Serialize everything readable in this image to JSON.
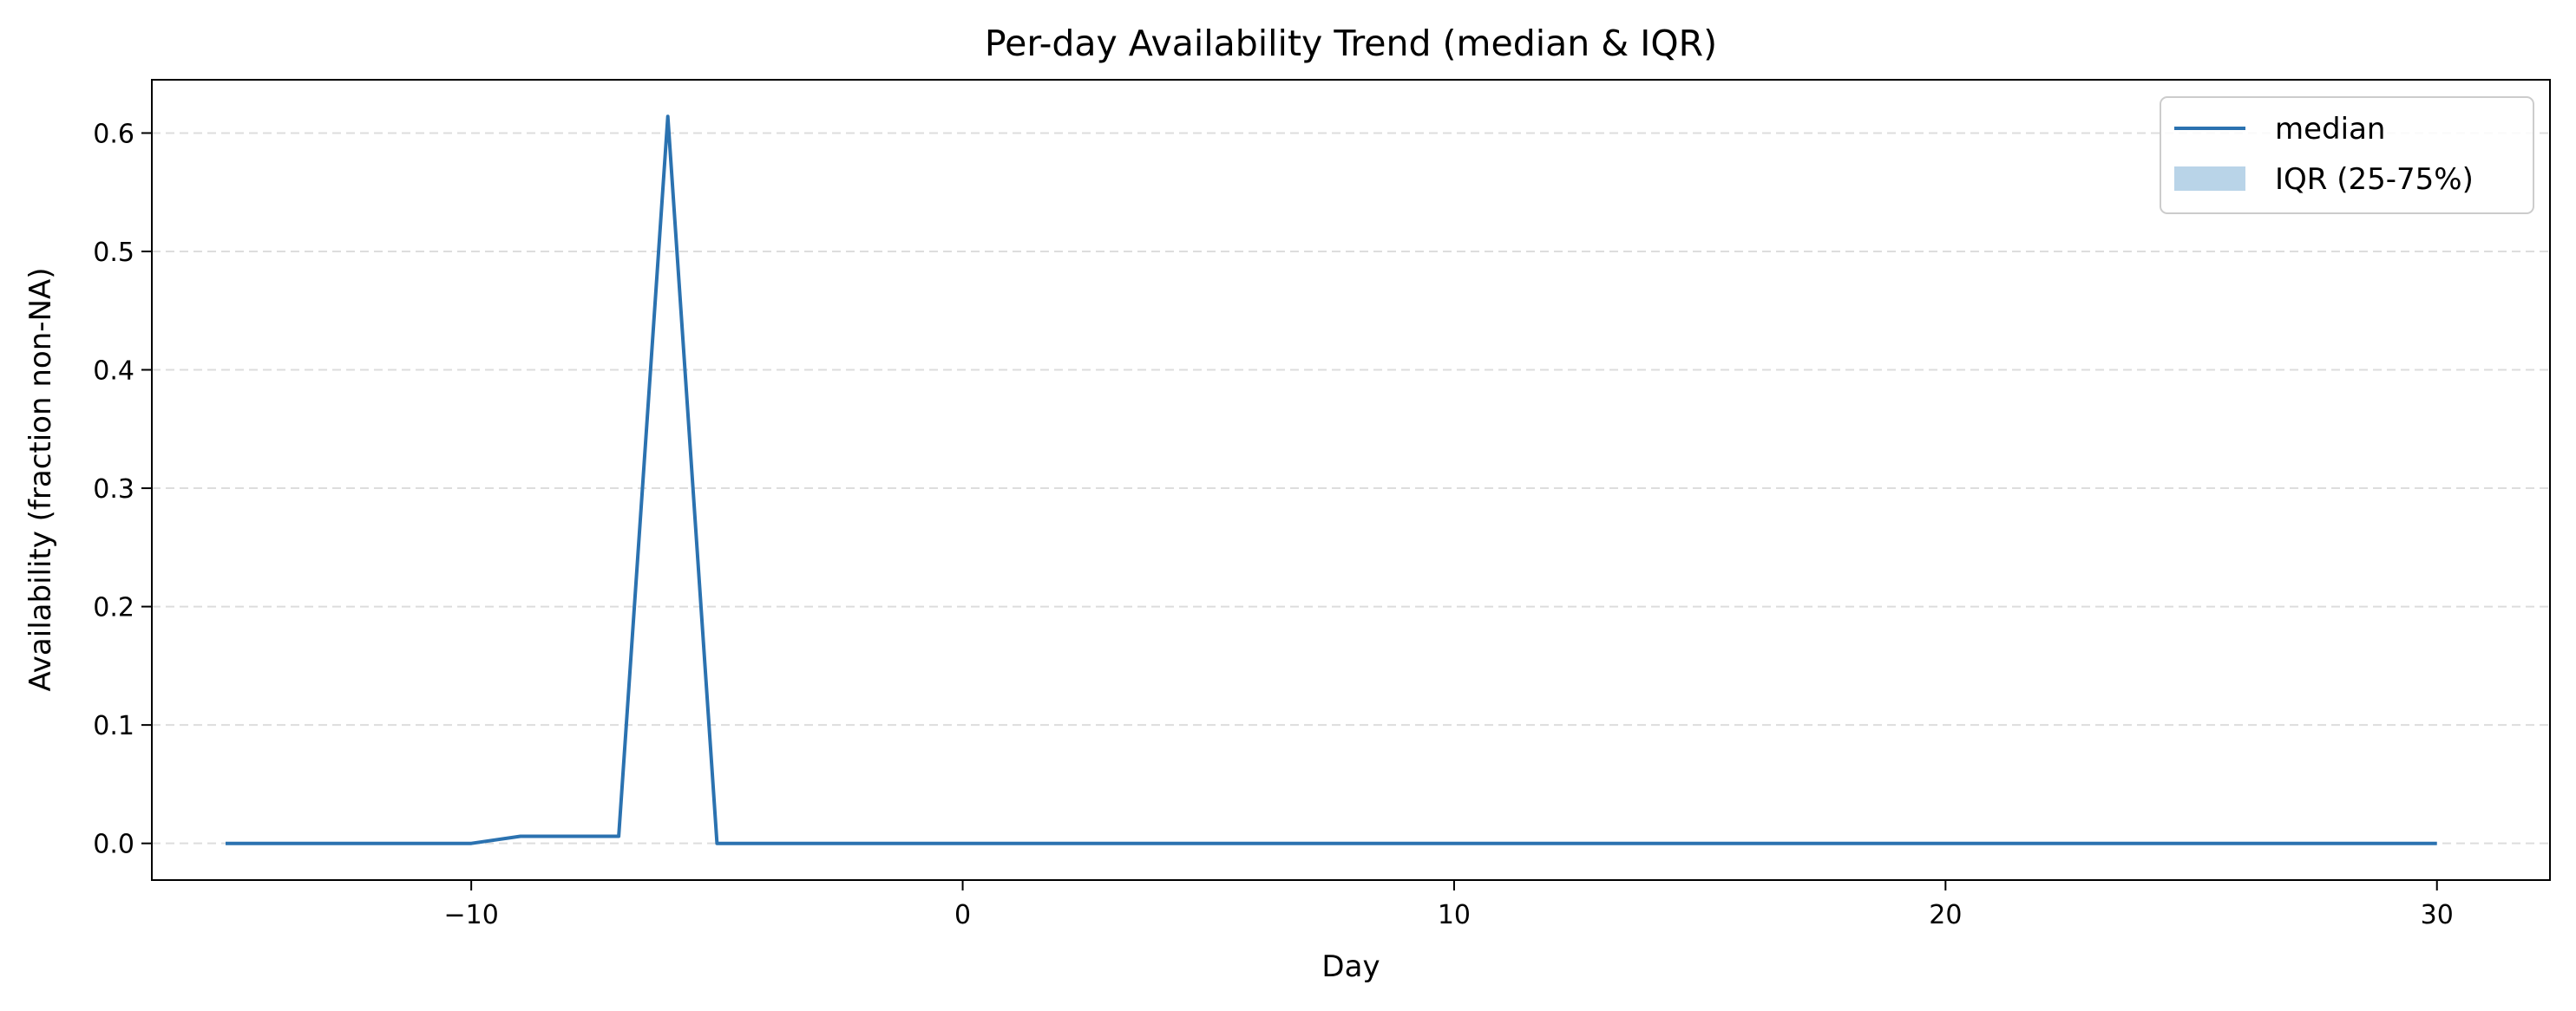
{
  "chart_data": {
    "type": "line",
    "title": "Per-day Availability Trend (median & IQR)",
    "xlabel": "Day",
    "ylabel": "Availability (fraction non-NA)",
    "xlim": [
      -16.5,
      32.3
    ],
    "ylim": [
      -0.031,
      0.645
    ],
    "xticks": [
      -10,
      0,
      10,
      20,
      30
    ],
    "xtick_labels": [
      "−10",
      "0",
      "10",
      "20",
      "30"
    ],
    "yticks": [
      0.0,
      0.1,
      0.2,
      0.3,
      0.4,
      0.5,
      0.6
    ],
    "ytick_labels": [
      "0.0",
      "0.1",
      "0.2",
      "0.3",
      "0.4",
      "0.5",
      "0.6"
    ],
    "grid": "y-dashed",
    "legend_position": "top-right",
    "series": [
      {
        "name": "median",
        "color": "#2b72b0",
        "x": [
          -15,
          -14,
          -13,
          -12,
          -11,
          -10,
          -9,
          -8,
          -7,
          -6,
          -5,
          -4,
          -3,
          -2,
          -1,
          0,
          1,
          2,
          3,
          4,
          5,
          6,
          7,
          8,
          9,
          10,
          11,
          12,
          13,
          14,
          15,
          16,
          17,
          18,
          19,
          20,
          21,
          22,
          23,
          24,
          25,
          26,
          27,
          28,
          29,
          30
        ],
        "values": [
          0,
          0,
          0,
          0,
          0,
          0,
          0.006,
          0.006,
          0.006,
          0.614,
          0,
          0,
          0,
          0,
          0,
          0,
          0,
          0,
          0,
          0,
          0,
          0,
          0,
          0,
          0,
          0,
          0,
          0,
          0,
          0,
          0,
          0,
          0,
          0,
          0,
          0,
          0,
          0,
          0,
          0,
          0,
          0,
          0,
          0,
          0,
          0
        ]
      }
    ],
    "band": {
      "name": "IQR (25-75%)",
      "color": "#b9d4e8"
    }
  }
}
